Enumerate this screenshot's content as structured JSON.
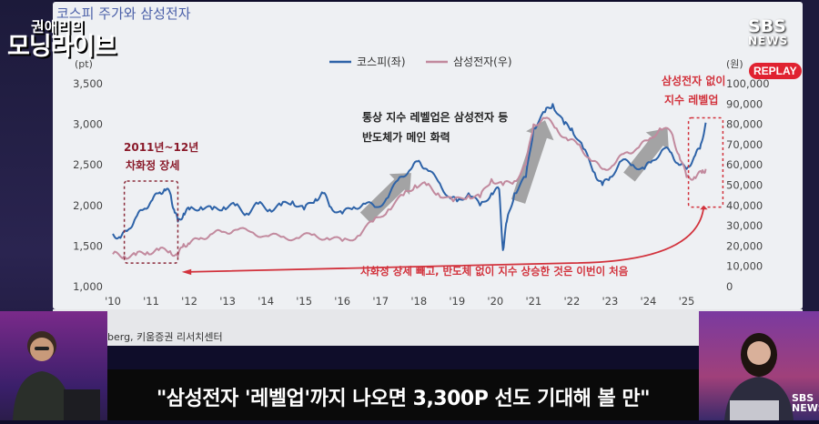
{
  "broadcast": {
    "show_name_line1": "권애리의",
    "show_name_line2": "모닝라이브",
    "channel": "SBS",
    "channel_sub": "NEWS",
    "replay_badge": "REPLAY",
    "caption": "\"삼성전자 '레벨업'까지 나오면 3,300P 선도 기대해 볼 만\"",
    "source": "berg, 키움증권 리서치센터",
    "corner_logo": "SBS NEWS"
  },
  "colors": {
    "kospi": "#2e63a8",
    "samsung": "#c28a9e",
    "annotation_red": "#d2323c",
    "arrow_gray": "#8a8a8a"
  },
  "chart_data": {
    "type": "line",
    "title": "코스피 주가와 삼성전자",
    "left_unit": "(pt)",
    "right_unit": "(원)",
    "legend": [
      "코스피(좌)",
      "삼성전자(우)"
    ],
    "x_ticks": [
      "'10",
      "'11",
      "'12",
      "'13",
      "'14",
      "'15",
      "'16",
      "'17",
      "'18",
      "'19",
      "'20",
      "'21",
      "'22",
      "'23",
      "'24",
      "'25"
    ],
    "left_ticks": [
      "3,500",
      "3,000",
      "2,500",
      "2,000",
      "1,500",
      "1,000"
    ],
    "right_ticks": [
      "100,000",
      "90,000",
      "80,000",
      "70,000",
      "60,000",
      "50,000",
      "40,000",
      "30,000",
      "20,000",
      "10,000",
      "0"
    ],
    "ylim_left": [
      1000,
      3500
    ],
    "ylim_right": [
      0,
      100000
    ],
    "xlim": [
      2010.0,
      2025.75
    ],
    "series": [
      {
        "name": "코스피(좌)",
        "axis": "left",
        "x": [
          2010.0,
          2010.2,
          2010.4,
          2010.6,
          2010.8,
          2011.0,
          2011.2,
          2011.35,
          2011.5,
          2011.6,
          2011.7,
          2011.85,
          2012.0,
          2012.3,
          2012.6,
          2012.9,
          2013.2,
          2013.5,
          2013.8,
          2014.1,
          2014.4,
          2014.7,
          2015.0,
          2015.3,
          2015.5,
          2015.7,
          2016.0,
          2016.3,
          2016.6,
          2016.9,
          2017.2,
          2017.5,
          2017.8,
          2018.0,
          2018.2,
          2018.5,
          2018.8,
          2019.0,
          2019.3,
          2019.6,
          2019.9,
          2020.1,
          2020.2,
          2020.3,
          2020.5,
          2020.8,
          2021.0,
          2021.3,
          2021.5,
          2021.8,
          2022.0,
          2022.3,
          2022.6,
          2022.8,
          2023.0,
          2023.3,
          2023.6,
          2023.9,
          2024.1,
          2024.4,
          2024.6,
          2024.8,
          2025.0,
          2025.2,
          2025.35,
          2025.5
        ],
        "values": [
          1650,
          1600,
          1700,
          1850,
          1950,
          2050,
          2150,
          2200,
          2150,
          1950,
          1800,
          1900,
          1950,
          1980,
          1950,
          1980,
          2000,
          1900,
          2020,
          1950,
          2000,
          2050,
          1950,
          2080,
          2150,
          1980,
          1900,
          1980,
          2020,
          1980,
          2100,
          2350,
          2450,
          2550,
          2450,
          2300,
          2100,
          2050,
          2150,
          2000,
          2150,
          2200,
          1450,
          1800,
          2150,
          2350,
          2950,
          3150,
          3250,
          3000,
          2950,
          2700,
          2400,
          2250,
          2350,
          2550,
          2500,
          2450,
          2550,
          2700,
          2650,
          2500,
          2450,
          2600,
          2700,
          3020
        ]
      },
      {
        "name": "삼성전자(우)",
        "axis": "right",
        "x": [
          2010.0,
          2010.3,
          2010.6,
          2010.9,
          2011.2,
          2011.5,
          2011.7,
          2011.85,
          2012.0,
          2012.3,
          2012.6,
          2012.9,
          2013.2,
          2013.6,
          2014.0,
          2014.4,
          2014.8,
          2015.2,
          2015.6,
          2016.0,
          2016.4,
          2016.8,
          2017.2,
          2017.6,
          2017.9,
          2018.2,
          2018.5,
          2018.9,
          2019.3,
          2019.6,
          2019.9,
          2020.2,
          2020.5,
          2020.8,
          2021.0,
          2021.3,
          2021.6,
          2021.9,
          2022.2,
          2022.5,
          2022.8,
          2023.1,
          2023.4,
          2023.7,
          2024.0,
          2024.3,
          2024.6,
          2024.8,
          2025.0,
          2025.2,
          2025.4,
          2025.5
        ],
        "values": [
          16000,
          15000,
          15500,
          17000,
          18000,
          17500,
          15000,
          21000,
          21000,
          24000,
          26000,
          27000,
          28000,
          27000,
          25000,
          24500,
          24000,
          25500,
          24000,
          22500,
          25000,
          32000,
          38000,
          45000,
          50000,
          50000,
          46000,
          42000,
          45000,
          44000,
          53000,
          50000,
          52000,
          60000,
          80000,
          83000,
          78000,
          72000,
          70000,
          62000,
          58000,
          60000,
          66000,
          68000,
          72000,
          78000,
          76000,
          65000,
          54000,
          54000,
          56000,
          58000
        ]
      }
    ],
    "annotations": [
      "2011년~12년",
      "차화정 장세",
      "통상 지수 레벨업은 삼성전자 등",
      "반도체가 메인 화력",
      "삼성전자 없이",
      "지수 레벨업",
      "차화정 장세 빼고, 반도체 없이 지수 상승한 것은 이번이 처음"
    ]
  }
}
